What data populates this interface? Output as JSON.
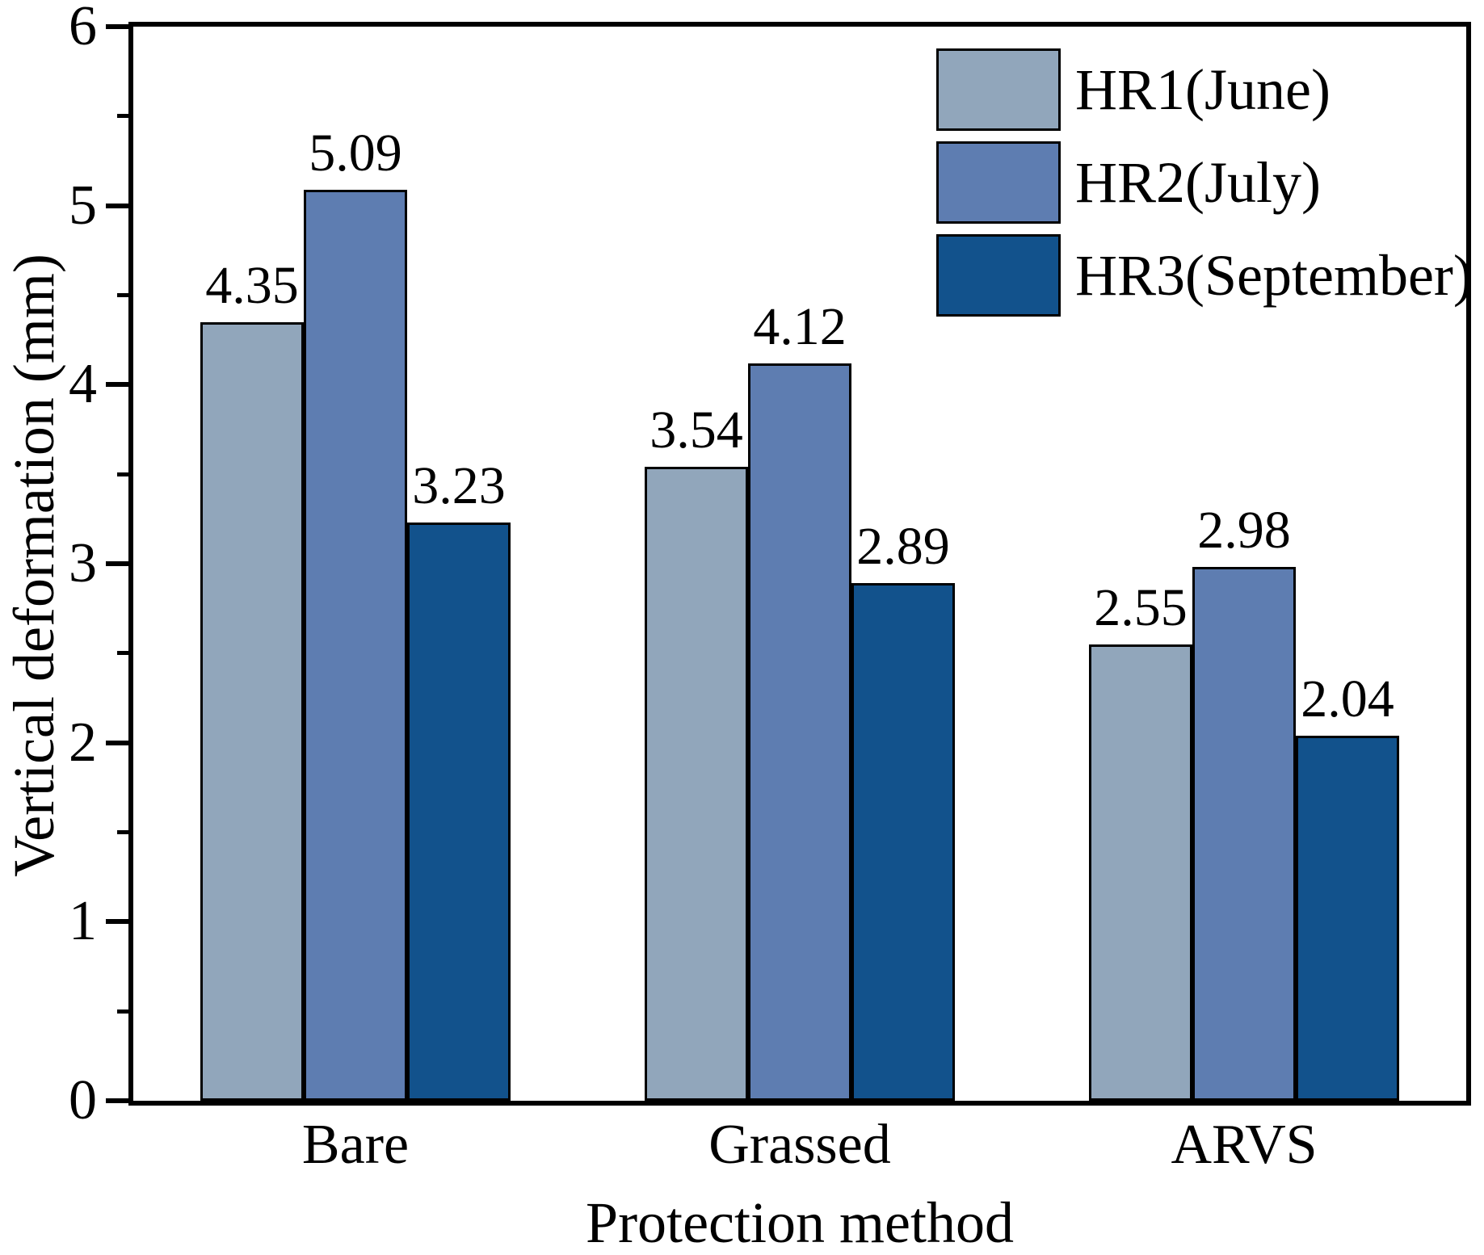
{
  "chart_data": {
    "type": "bar",
    "title": "",
    "categories": [
      "Bare",
      "Grassed",
      "ARVS"
    ],
    "series": [
      {
        "name": "HR1(June)",
        "color": "#91A6BB",
        "values": [
          4.35,
          3.54,
          2.55
        ]
      },
      {
        "name": "HR2(July)",
        "color": "#5E7DB1",
        "values": [
          5.09,
          4.12,
          2.98
        ]
      },
      {
        "name": "HR3(September)",
        "color": "#12528C",
        "values": [
          3.23,
          2.89,
          2.04
        ]
      }
    ],
    "xlabel": "Protection method",
    "ylabel": "Vertical deformation (mm)",
    "ylim": [
      0,
      6
    ],
    "y_major_ticks": [
      0,
      1,
      2,
      3,
      4,
      5,
      6
    ],
    "y_minor_ticks": [
      0.5,
      1.5,
      2.5,
      3.5,
      4.5,
      5.5
    ],
    "value_label_decimals": 2,
    "legend_position": "top-right",
    "grid": false,
    "bar_outline_color": "#000000",
    "axis_color": "#000000",
    "background_color": "#ffffff"
  }
}
